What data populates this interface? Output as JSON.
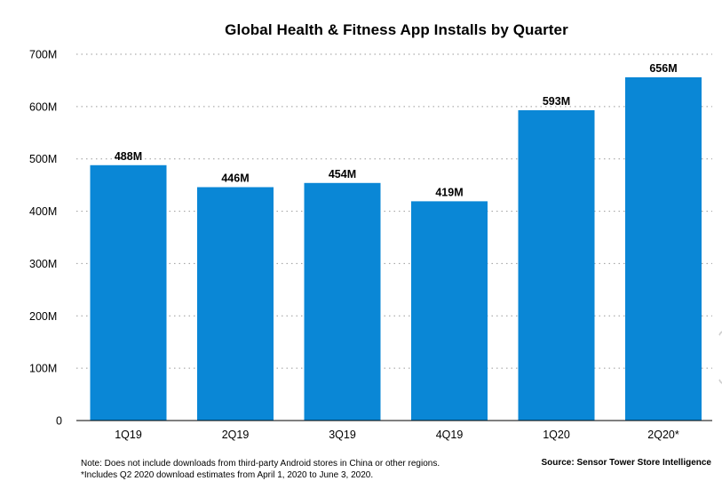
{
  "chart_data": {
    "type": "bar",
    "title": "Global Health & Fitness App Installs by Quarter",
    "categories": [
      "1Q19",
      "2Q19",
      "3Q19",
      "4Q19",
      "1Q20",
      "2Q20*"
    ],
    "values": [
      488,
      446,
      454,
      419,
      593,
      656
    ],
    "value_labels": [
      "488M",
      "446M",
      "454M",
      "419M",
      "593M",
      "656M"
    ],
    "y_ticks": [
      0,
      100,
      200,
      300,
      400,
      500,
      600,
      700
    ],
    "y_tick_labels": [
      "0",
      "100M",
      "200M",
      "300M",
      "400M",
      "500M",
      "600M",
      "700M"
    ],
    "ylim": [
      0,
      700
    ],
    "xlabel": "",
    "ylabel": "",
    "grid": true,
    "bar_color": "#0a87d6"
  },
  "footer": {
    "note_line1": "Note: Does not include downloads from third-party Android stores in China or other regions.",
    "note_line2": "*Includes Q2 2020 download estimates from April 1, 2020 to June 3, 2020.",
    "source": "Source: Sensor Tower Store Intelligence"
  }
}
